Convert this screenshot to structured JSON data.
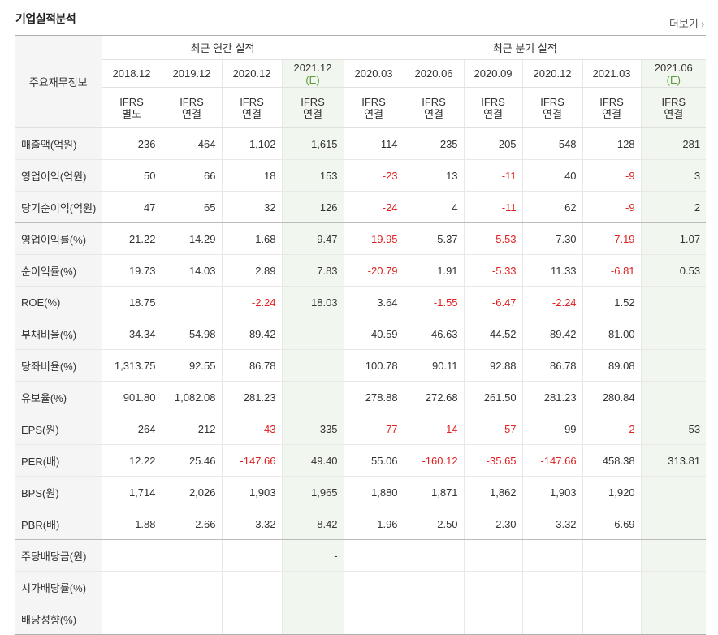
{
  "title": "기업실적분석",
  "more_label": "더보기",
  "more_arrow": "›",
  "header": {
    "corner": "주요재무정보",
    "annual_group": "최근 연간 실적",
    "quarter_group": "최근 분기 실적",
    "periods": [
      {
        "year": "2018.12",
        "est": "",
        "ifrs": "IFRS",
        "basis": "별도"
      },
      {
        "year": "2019.12",
        "est": "",
        "ifrs": "IFRS",
        "basis": "연결"
      },
      {
        "year": "2020.12",
        "est": "",
        "ifrs": "IFRS",
        "basis": "연결"
      },
      {
        "year": "2021.12",
        "est": "(E)",
        "ifrs": "IFRS",
        "basis": "연결"
      },
      {
        "year": "2020.03",
        "est": "",
        "ifrs": "IFRS",
        "basis": "연결"
      },
      {
        "year": "2020.06",
        "est": "",
        "ifrs": "IFRS",
        "basis": "연결"
      },
      {
        "year": "2020.09",
        "est": "",
        "ifrs": "IFRS",
        "basis": "연결"
      },
      {
        "year": "2020.12",
        "est": "",
        "ifrs": "IFRS",
        "basis": "연결"
      },
      {
        "year": "2021.03",
        "est": "",
        "ifrs": "IFRS",
        "basis": "연결"
      },
      {
        "year": "2021.06",
        "est": "(E)",
        "ifrs": "IFRS",
        "basis": "연결"
      }
    ]
  },
  "rows": [
    {
      "label": "매출액(억원)",
      "values": [
        "236",
        "464",
        "1,102",
        "1,615",
        "114",
        "235",
        "205",
        "548",
        "128",
        "281"
      ]
    },
    {
      "label": "영업이익(억원)",
      "values": [
        "50",
        "66",
        "18",
        "153",
        "-23",
        "13",
        "-11",
        "40",
        "-9",
        "3"
      ]
    },
    {
      "label": "당기순이익(억원)",
      "values": [
        "47",
        "65",
        "32",
        "126",
        "-24",
        "4",
        "-11",
        "62",
        "-9",
        "2"
      ]
    },
    {
      "label": "영업이익률(%)",
      "values": [
        "21.22",
        "14.29",
        "1.68",
        "9.47",
        "-19.95",
        "5.37",
        "-5.53",
        "7.30",
        "-7.19",
        "1.07"
      ]
    },
    {
      "label": "순이익률(%)",
      "values": [
        "19.73",
        "14.03",
        "2.89",
        "7.83",
        "-20.79",
        "1.91",
        "-5.33",
        "11.33",
        "-6.81",
        "0.53"
      ]
    },
    {
      "label": "ROE(%)",
      "values": [
        "18.75",
        "",
        "-2.24",
        "18.03",
        "3.64",
        "-1.55",
        "-6.47",
        "-2.24",
        "1.52",
        ""
      ]
    },
    {
      "label": "부채비율(%)",
      "values": [
        "34.34",
        "54.98",
        "89.42",
        "",
        "40.59",
        "46.63",
        "44.52",
        "89.42",
        "81.00",
        ""
      ]
    },
    {
      "label": "당좌비율(%)",
      "values": [
        "1,313.75",
        "92.55",
        "86.78",
        "",
        "100.78",
        "90.11",
        "92.88",
        "86.78",
        "89.08",
        ""
      ]
    },
    {
      "label": "유보율(%)",
      "values": [
        "901.80",
        "1,082.08",
        "281.23",
        "",
        "278.88",
        "272.68",
        "261.50",
        "281.23",
        "280.84",
        ""
      ]
    },
    {
      "label": "EPS(원)",
      "values": [
        "264",
        "212",
        "-43",
        "335",
        "-77",
        "-14",
        "-57",
        "99",
        "-2",
        "53"
      ]
    },
    {
      "label": "PER(배)",
      "values": [
        "12.22",
        "25.46",
        "-147.66",
        "49.40",
        "55.06",
        "-160.12",
        "-35.65",
        "-147.66",
        "458.38",
        "313.81"
      ]
    },
    {
      "label": "BPS(원)",
      "values": [
        "1,714",
        "2,026",
        "1,903",
        "1,965",
        "1,880",
        "1,871",
        "1,862",
        "1,903",
        "1,920",
        ""
      ]
    },
    {
      "label": "PBR(배)",
      "values": [
        "1.88",
        "2.66",
        "3.32",
        "8.42",
        "1.96",
        "2.50",
        "2.30",
        "3.32",
        "6.69",
        ""
      ]
    },
    {
      "label": "주당배당금(원)",
      "values": [
        "",
        "",
        "",
        "-",
        "",
        "",
        "",
        "",
        "",
        ""
      ]
    },
    {
      "label": "시가배당률(%)",
      "values": [
        "",
        "",
        "",
        "",
        "",
        "",
        "",
        "",
        "",
        ""
      ]
    },
    {
      "label": "배당성향(%)",
      "values": [
        "-",
        "-",
        "-",
        "",
        "",
        "",
        "",
        "",
        "",
        ""
      ]
    }
  ],
  "colors": {
    "negative": "#e02020",
    "ifrs": "#e8622a",
    "estimate_bg": "#f1f7ee",
    "estimate_text": "#5a9a3a"
  }
}
